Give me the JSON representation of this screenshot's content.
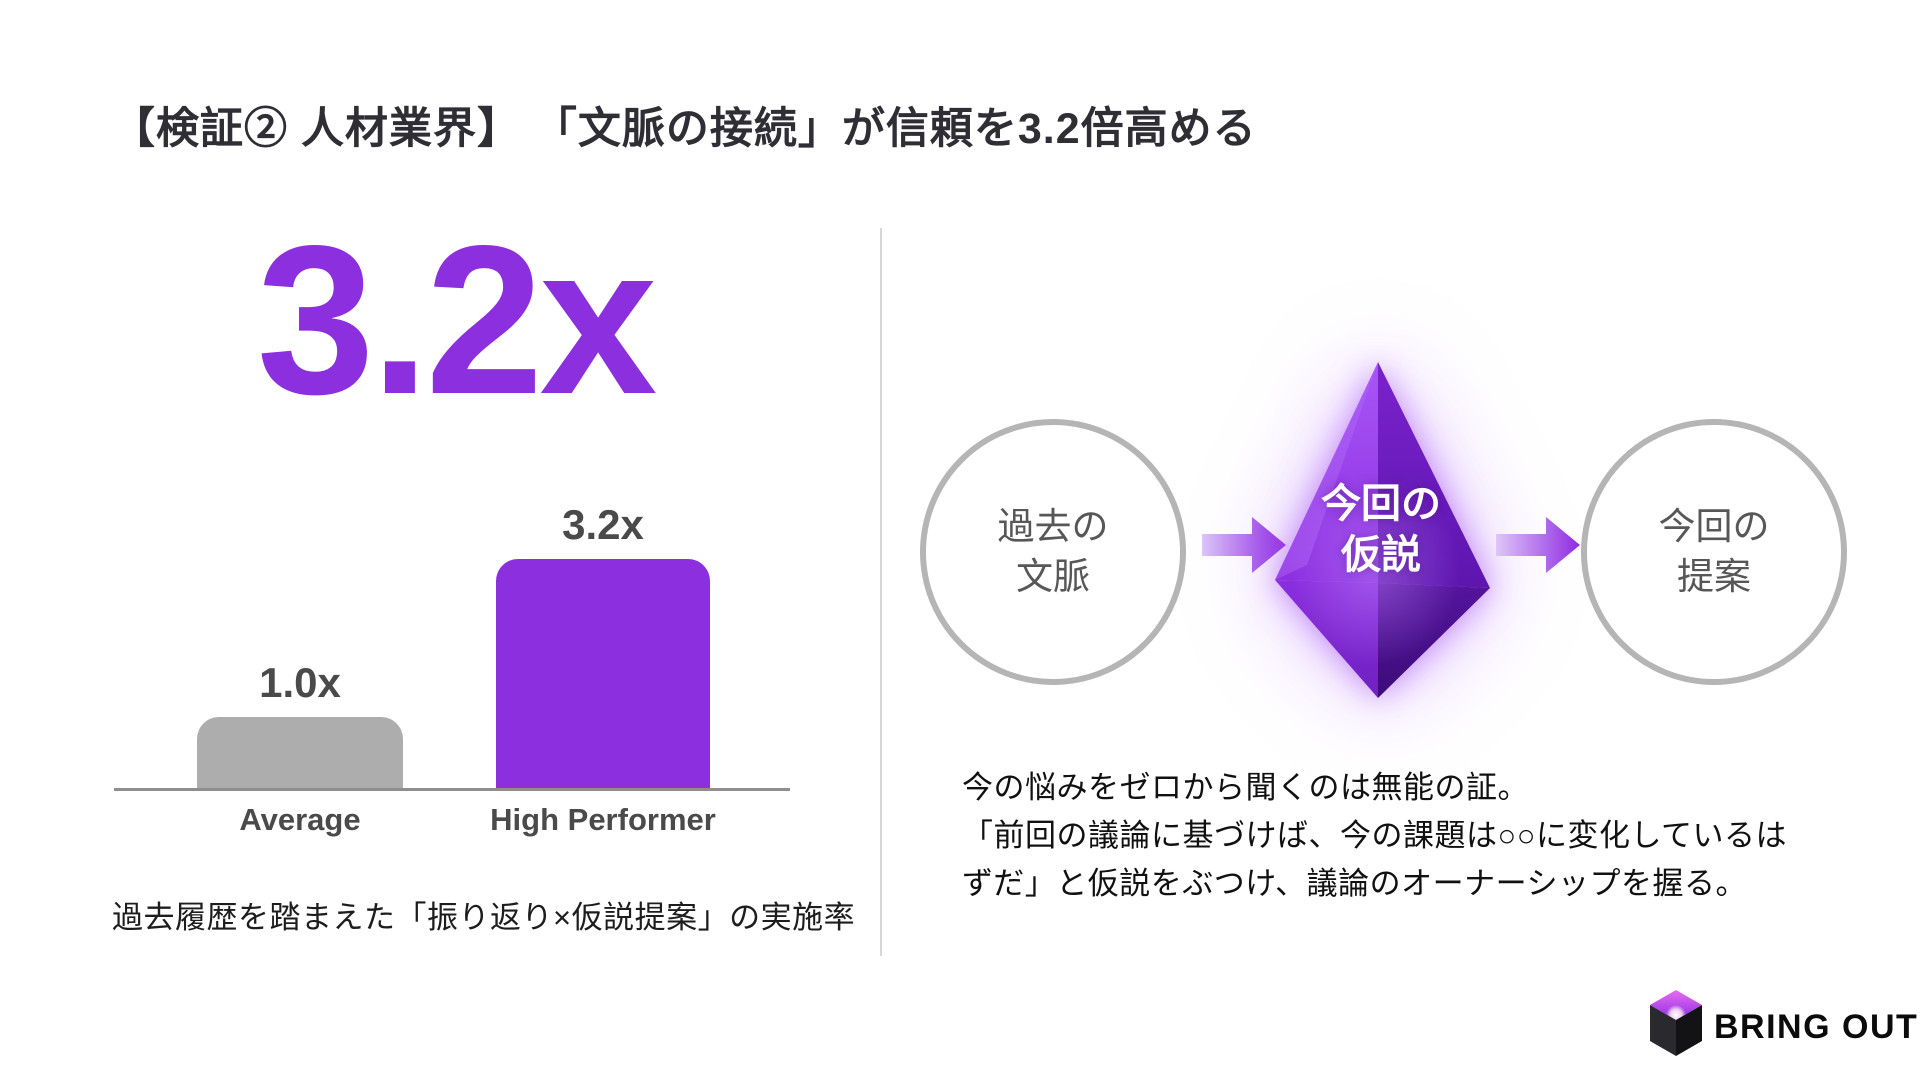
{
  "slide": {
    "title": "【検証② 人材業界】 「文脈の接続」が信頼を3.2倍高める",
    "accent_color": "#8C2FDE"
  },
  "left_panel": {
    "headline_stat": "3.2x",
    "caption": "過去履歴を踏まえた「振り返り×仮説提案」の実施率"
  },
  "chart_data": {
    "type": "bar",
    "categories": [
      "Average",
      "High Performer"
    ],
    "values": [
      1.0,
      3.2
    ],
    "bar_labels": [
      "1.0x",
      "3.2x"
    ],
    "bar_colors": [
      "#ADADAD",
      "#8C2FDE"
    ],
    "label_color": "#4a4a4a",
    "ylim": [
      0,
      3.5
    ],
    "grid": false,
    "legend": false,
    "title": "",
    "xlabel": "",
    "ylabel": ""
  },
  "right_panel": {
    "flow_steps": [
      {
        "shape": "circle",
        "line1": "過去の",
        "line2": "文脈"
      },
      {
        "shape": "gem",
        "line1": "今回の",
        "line2": "仮説"
      },
      {
        "shape": "circle",
        "line1": "今回の",
        "line2": "提案"
      }
    ],
    "body_lines": [
      "今の悩みをゼロから聞くのは無能の証。",
      "「前回の議論に基づけば、今の課題は○○に変化しているは",
      "ずだ」と仮説をぶつけ、議論のオーナーシップを握る。"
    ]
  },
  "footer": {
    "brand": "BRING OUT"
  }
}
